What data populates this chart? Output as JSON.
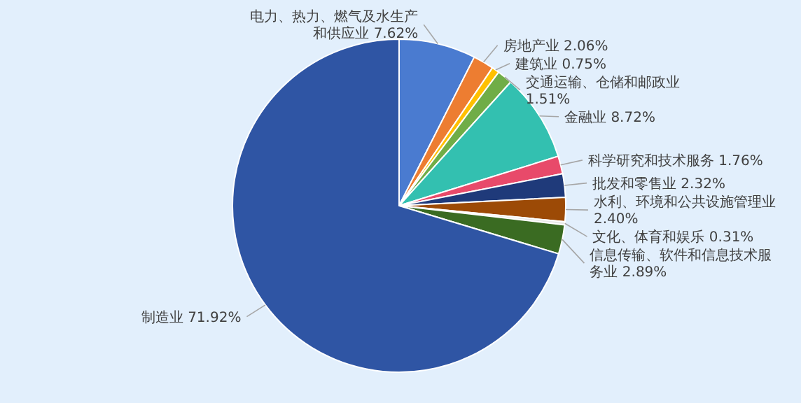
{
  "chart_data": {
    "type": "pie",
    "categories": [
      "电力、热力、燃气及水生产和供应业",
      "房地产业",
      "建筑业",
      "交通运输、仓储和邮政业",
      "金融业",
      "科学研究和技术服务",
      "批发和零售业",
      "水利、环境和公共设施管理业",
      "文化、体育和娱乐",
      "信息传输、软件和信息技术服务业",
      "制造业"
    ],
    "values": [
      7.62,
      2.06,
      0.75,
      1.51,
      8.72,
      1.76,
      2.32,
      2.4,
      0.31,
      2.89,
      71.92
    ],
    "value_labels": [
      "7.62%",
      "2.06%",
      "0.75%",
      "1.51%",
      "8.72%",
      "1.76%",
      "2.32%",
      "2.40%",
      "0.31%",
      "2.89%",
      "71.92%"
    ],
    "colors": [
      "#4a7bd0",
      "#ed7d31",
      "#ffc000",
      "#70ad47",
      "#33c0b0",
      "#e84a6a",
      "#1f3a7a",
      "#9c4a06",
      "#e8e8e8",
      "#3a6b22",
      "#2f55a4"
    ]
  }
}
